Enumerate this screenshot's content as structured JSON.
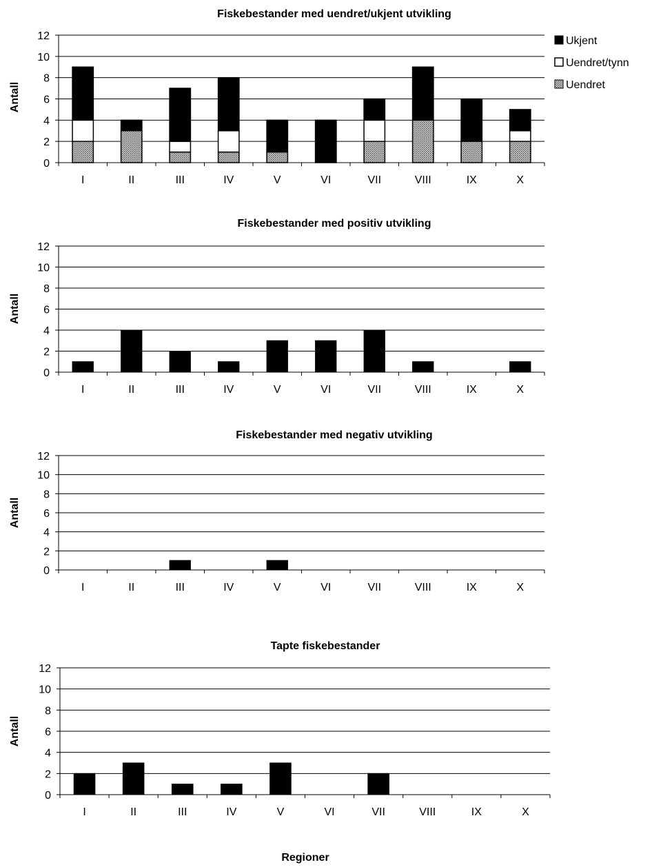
{
  "colors": {
    "ukjent": "#000000",
    "uendret_tynn": "#ffffff",
    "uendret": "#9a9a9a",
    "axis": "#000000",
    "grid": "#000000"
  },
  "chart_data": [
    {
      "type": "bar",
      "stacked": true,
      "title": "Fiskebestander med uendret/ukjent utvikling",
      "ylabel": "Antall",
      "xlabel": "",
      "categories": [
        "I",
        "II",
        "III",
        "IV",
        "V",
        "VI",
        "VII",
        "VIII",
        "IX",
        "X"
      ],
      "yticks": [
        "0",
        "2",
        "4",
        "6",
        "8",
        "10",
        "12"
      ],
      "ylim": [
        0,
        12
      ],
      "grid": true,
      "legend_position": "top-right",
      "series": [
        {
          "name": "Uendret",
          "pattern": "dotted",
          "values": [
            2,
            3,
            1,
            1,
            1,
            0,
            2,
            4,
            2,
            2
          ]
        },
        {
          "name": "Uendret/tynn",
          "pattern": "white",
          "values": [
            2,
            0,
            1,
            2,
            0,
            0,
            2,
            0,
            0,
            1
          ]
        },
        {
          "name": "Ukjent",
          "pattern": "black",
          "values": [
            5,
            1,
            5,
            5,
            3,
            4,
            2,
            5,
            4,
            2
          ]
        }
      ],
      "legend": [
        "Ukjent",
        "Uendret/tynn",
        "Uendret"
      ]
    },
    {
      "type": "bar",
      "title": "Fiskebestander med positiv utvikling",
      "ylabel": "Antall",
      "xlabel": "",
      "categories": [
        "I",
        "II",
        "III",
        "IV",
        "V",
        "VI",
        "VII",
        "VIII",
        "IX",
        "X"
      ],
      "yticks": [
        "0",
        "2",
        "4",
        "6",
        "8",
        "10",
        "12"
      ],
      "ylim": [
        0,
        12
      ],
      "grid": true,
      "values": [
        1,
        4,
        2,
        1,
        3,
        3,
        4,
        1,
        0,
        1
      ]
    },
    {
      "type": "bar",
      "title": "Fiskebestander med negativ utvikling",
      "ylabel": "Antall",
      "xlabel": "",
      "categories": [
        "I",
        "II",
        "III",
        "IV",
        "V",
        "VI",
        "VII",
        "VIII",
        "IX",
        "X"
      ],
      "yticks": [
        "0",
        "2",
        "4",
        "6",
        "8",
        "10",
        "12"
      ],
      "ylim": [
        0,
        12
      ],
      "grid": true,
      "values": [
        0,
        0,
        1,
        0,
        1,
        0,
        0,
        0,
        0,
        0
      ]
    },
    {
      "type": "bar",
      "title": "Tapte fiskebestander",
      "ylabel": "Antall",
      "xlabel": "Regioner",
      "categories": [
        "I",
        "II",
        "III",
        "IV",
        "V",
        "VI",
        "VII",
        "VIII",
        "IX",
        "X"
      ],
      "yticks": [
        "0",
        "2",
        "4",
        "6",
        "8",
        "10",
        "12"
      ],
      "ylim": [
        0,
        12
      ],
      "grid": true,
      "values": [
        2,
        3,
        1,
        1,
        3,
        0,
        2,
        0,
        0,
        0
      ]
    }
  ]
}
